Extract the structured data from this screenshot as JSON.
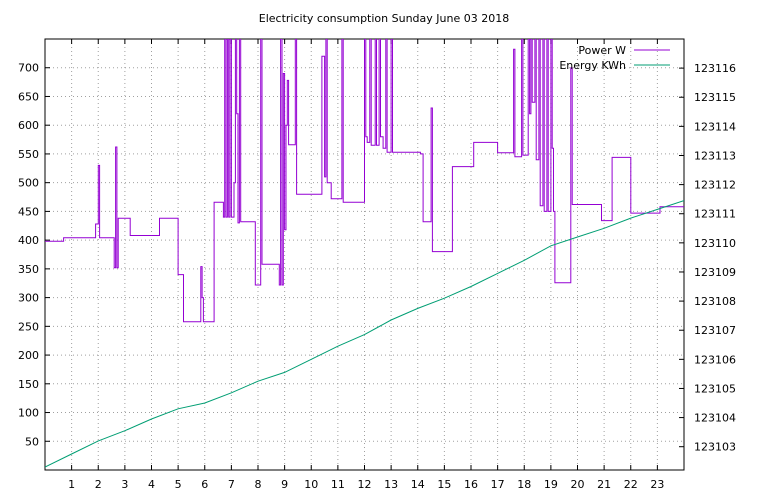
{
  "chart_data": {
    "type": "line",
    "title": "Electricity consumption Sunday June 03 2018",
    "x_range": [
      0,
      24
    ],
    "x_ticks": [
      1,
      2,
      3,
      4,
      5,
      6,
      7,
      8,
      9,
      10,
      11,
      12,
      13,
      14,
      15,
      16,
      17,
      18,
      19,
      20,
      21,
      22,
      23
    ],
    "y_left": {
      "range": [
        0,
        750
      ],
      "ticks": [
        50,
        100,
        150,
        200,
        250,
        300,
        350,
        400,
        450,
        500,
        550,
        600,
        650,
        700
      ]
    },
    "y_right": {
      "range": [
        123102.2,
        123117.0
      ],
      "ticks": [
        123103,
        123104,
        123105,
        123106,
        123107,
        123108,
        123109,
        123110,
        123111,
        123112,
        123113,
        123114,
        123115,
        123116
      ]
    },
    "grid": true,
    "legend_placement": "top-right",
    "series": [
      {
        "name": "Power W",
        "axis": "left",
        "color": "#9400d3",
        "step": true,
        "points": [
          [
            0,
            398
          ],
          [
            0.7,
            398
          ],
          [
            0.7,
            404
          ],
          [
            1.9,
            404
          ],
          [
            1.9,
            428
          ],
          [
            2.0,
            428
          ],
          [
            2.0,
            530
          ],
          [
            2.05,
            404
          ],
          [
            2.6,
            404
          ],
          [
            2.6,
            352
          ],
          [
            2.65,
            562
          ],
          [
            2.7,
            352
          ],
          [
            2.75,
            438
          ],
          [
            3.2,
            438
          ],
          [
            3.2,
            408
          ],
          [
            4.3,
            408
          ],
          [
            4.3,
            438
          ],
          [
            5.0,
            438
          ],
          [
            5.0,
            340
          ],
          [
            5.2,
            340
          ],
          [
            5.2,
            258
          ],
          [
            5.85,
            258
          ],
          [
            5.85,
            354
          ],
          [
            5.9,
            300
          ],
          [
            5.95,
            258
          ],
          [
            6.35,
            258
          ],
          [
            6.35,
            466
          ],
          [
            6.7,
            466
          ],
          [
            6.7,
            440
          ],
          [
            6.75,
            750
          ],
          [
            6.8,
            440
          ],
          [
            6.85,
            750
          ],
          [
            6.9,
            440
          ],
          [
            6.95,
            750
          ],
          [
            7.0,
            440
          ],
          [
            7.1,
            500
          ],
          [
            7.15,
            750
          ],
          [
            7.2,
            620
          ],
          [
            7.25,
            430
          ],
          [
            7.3,
            750
          ],
          [
            7.35,
            432
          ],
          [
            7.9,
            432
          ],
          [
            7.9,
            322
          ],
          [
            8.1,
            322
          ],
          [
            8.1,
            750
          ],
          [
            8.15,
            358
          ],
          [
            8.8,
            358
          ],
          [
            8.8,
            322
          ],
          [
            8.85,
            750
          ],
          [
            8.9,
            322
          ],
          [
            8.95,
            690
          ],
          [
            9.0,
            418
          ],
          [
            9.05,
            600
          ],
          [
            9.1,
            678
          ],
          [
            9.15,
            566
          ],
          [
            9.4,
            566
          ],
          [
            9.4,
            750
          ],
          [
            9.45,
            480
          ],
          [
            10.4,
            480
          ],
          [
            10.4,
            720
          ],
          [
            10.5,
            510
          ],
          [
            10.55,
            750
          ],
          [
            10.6,
            500
          ],
          [
            10.75,
            500
          ],
          [
            10.75,
            472
          ],
          [
            11.15,
            472
          ],
          [
            11.15,
            750
          ],
          [
            11.2,
            466
          ],
          [
            12.0,
            466
          ],
          [
            12.0,
            750
          ],
          [
            12.05,
            580
          ],
          [
            12.1,
            570
          ],
          [
            12.2,
            750
          ],
          [
            12.25,
            565
          ],
          [
            12.4,
            750
          ],
          [
            12.45,
            565
          ],
          [
            12.55,
            750
          ],
          [
            12.6,
            580
          ],
          [
            12.7,
            560
          ],
          [
            12.8,
            750
          ],
          [
            12.85,
            553
          ],
          [
            13.0,
            750
          ],
          [
            13.05,
            553
          ],
          [
            14.1,
            553
          ],
          [
            14.1,
            550
          ],
          [
            14.2,
            550
          ],
          [
            14.2,
            432
          ],
          [
            14.5,
            432
          ],
          [
            14.5,
            630
          ],
          [
            14.55,
            380
          ],
          [
            15.3,
            380
          ],
          [
            15.3,
            528
          ],
          [
            16.1,
            528
          ],
          [
            16.1,
            570
          ],
          [
            17.0,
            570
          ],
          [
            17.0,
            552
          ],
          [
            17.6,
            552
          ],
          [
            17.6,
            732
          ],
          [
            17.65,
            545
          ],
          [
            17.9,
            545
          ],
          [
            17.9,
            750
          ],
          [
            17.95,
            548
          ],
          [
            18.15,
            548
          ],
          [
            18.15,
            750
          ],
          [
            18.2,
            620
          ],
          [
            18.25,
            750
          ],
          [
            18.3,
            640
          ],
          [
            18.4,
            750
          ],
          [
            18.45,
            540
          ],
          [
            18.55,
            750
          ],
          [
            18.6,
            460
          ],
          [
            18.7,
            750
          ],
          [
            18.75,
            450
          ],
          [
            18.85,
            750
          ],
          [
            18.9,
            450
          ],
          [
            19.0,
            750
          ],
          [
            19.05,
            560
          ],
          [
            19.1,
            450
          ],
          [
            19.15,
            326
          ],
          [
            19.75,
            326
          ],
          [
            19.75,
            700
          ],
          [
            19.8,
            462
          ],
          [
            20.9,
            462
          ],
          [
            20.9,
            434
          ],
          [
            21.3,
            434
          ],
          [
            21.3,
            544
          ],
          [
            22.0,
            544
          ],
          [
            22.0,
            447
          ],
          [
            23.1,
            447
          ],
          [
            23.1,
            458
          ],
          [
            24,
            458
          ]
        ]
      },
      {
        "name": "Energy KWh",
        "axis": "right",
        "color": "#009e73",
        "step": false,
        "points": [
          [
            0,
            123102.3
          ],
          [
            1,
            123102.75
          ],
          [
            2,
            123103.2
          ],
          [
            3,
            123103.55
          ],
          [
            4,
            123103.95
          ],
          [
            5,
            123104.3
          ],
          [
            6,
            123104.5
          ],
          [
            7,
            123104.85
          ],
          [
            8,
            123105.25
          ],
          [
            9,
            123105.55
          ],
          [
            10,
            123106.0
          ],
          [
            11,
            123106.45
          ],
          [
            12,
            123106.85
          ],
          [
            13,
            123107.35
          ],
          [
            14,
            123107.75
          ],
          [
            15,
            123108.1
          ],
          [
            16,
            123108.5
          ],
          [
            17,
            123108.95
          ],
          [
            18,
            123109.4
          ],
          [
            19,
            123109.9
          ],
          [
            20,
            123110.2
          ],
          [
            21,
            123110.5
          ],
          [
            22,
            123110.85
          ],
          [
            23,
            123111.15
          ],
          [
            24,
            123111.45
          ]
        ]
      }
    ]
  }
}
